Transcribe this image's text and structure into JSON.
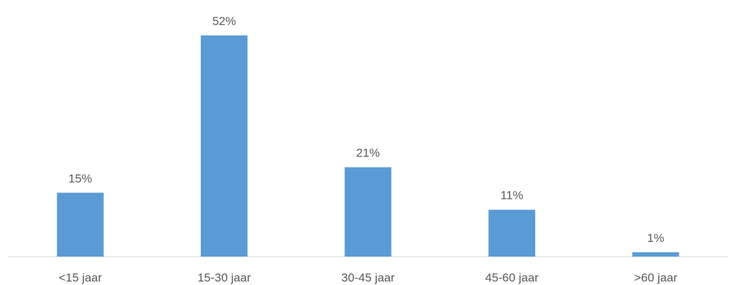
{
  "chart_data": {
    "type": "bar",
    "title": "",
    "xlabel": "",
    "ylabel": "",
    "categories": [
      "<15 jaar",
      "15-30 jaar",
      "30-45 jaar",
      "45-60 jaar",
      ">60 jaar"
    ],
    "values": [
      15,
      52,
      21,
      11,
      1
    ],
    "data_labels": [
      "15%",
      "52%",
      "21%",
      "11%",
      "1%"
    ],
    "ylim": [
      0,
      52
    ],
    "grid": false,
    "legend": "none",
    "bar_color": "#5B9BD5",
    "axis_color": "#D9D9D9",
    "text_color": "#595959"
  }
}
